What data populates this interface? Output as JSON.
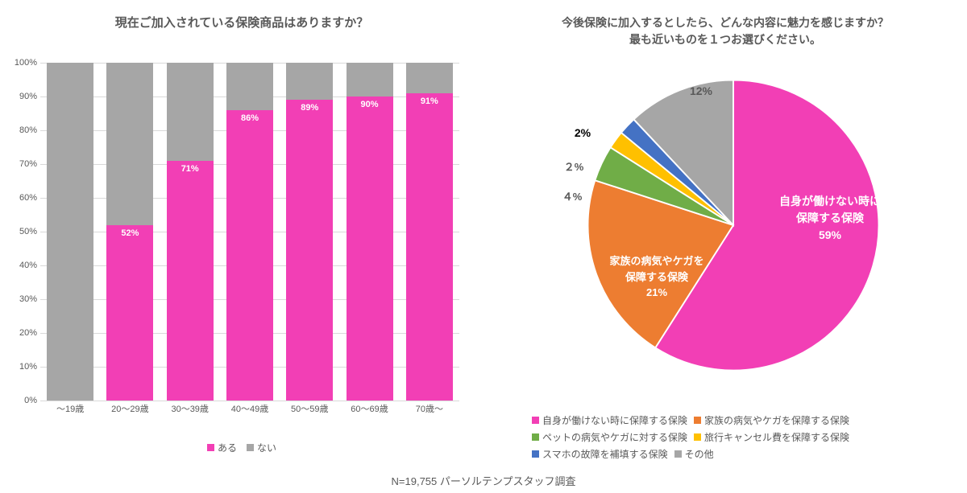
{
  "colors": {
    "pink": "#f23fb5",
    "gray": "#a6a6a6",
    "orange": "#ed7d31",
    "green": "#70ad47",
    "yellow": "#ffc000",
    "blue": "#4472c4",
    "text": "#595959",
    "grid": "#d9d9d9",
    "white": "#ffffff"
  },
  "bar_chart": {
    "title": "現在ご加入されている保険商品はありますか？",
    "title_fontsize": 15,
    "y_axis": {
      "min": 0,
      "max": 100,
      "step": 10,
      "tick_fontsize": 11,
      "tick_suffix": "%"
    },
    "categories": [
      "～19歳",
      "20～29歳",
      "30～39歳",
      "40～49歳",
      "50～59歳",
      "60～69歳",
      "70歳～"
    ],
    "x_label_fontsize": 11,
    "series": [
      {
        "name": "ある",
        "color_key": "pink"
      },
      {
        "name": "ない",
        "color_key": "gray"
      }
    ],
    "values_aru": [
      0,
      52,
      71,
      86,
      89,
      90,
      91
    ],
    "bar_label_fontsize": 11,
    "legend_fontsize": 12
  },
  "pie_chart": {
    "title_line1": "今後保険に加入するとしたら、どんな内容に魅力を感じますか？",
    "title_line2": "最も近いものを１つお選びください。",
    "title_fontsize": 14,
    "slices": [
      {
        "label": "自身が働けない時に保障する保険",
        "value": 59,
        "color_key": "pink",
        "callout_lines": [
          "自身が働けない時に",
          "保障する保険",
          "59%"
        ],
        "callout_color": "#ffffff",
        "callout_fontsize": 14
      },
      {
        "label": "家族の病気やケガを保障する保険",
        "value": 21,
        "color_key": "orange",
        "callout_lines": [
          "家族の病気やケガを",
          "保障する保険",
          "21%"
        ],
        "callout_color": "#ffffff",
        "callout_fontsize": 13
      },
      {
        "label": "ペットの病気やケガに対する保険",
        "value": 4,
        "color_key": "green",
        "callout_lines": [
          "４%"
        ],
        "callout_color": "#595959",
        "callout_fontsize": 13
      },
      {
        "label": "旅行キャンセル費を保障する保険",
        "value": 2,
        "color_key": "yellow",
        "callout_lines": [
          "２%"
        ],
        "callout_color": "#595959",
        "callout_fontsize": 13
      },
      {
        "label": "スマホの故障を補填する保険",
        "value": 2,
        "color_key": "blue",
        "callout_lines": [
          "2%"
        ],
        "callout_color": "#000000",
        "callout_fontsize": 14
      },
      {
        "label": "その他",
        "value": 12,
        "color_key": "gray",
        "callout_lines": [
          "12%"
        ],
        "callout_color": "#595959",
        "callout_fontsize": 14
      }
    ],
    "legend_fontsize": 12
  },
  "footer": {
    "text": "N=19,755  パーソルテンプスタッフ調査",
    "fontsize": 13
  }
}
